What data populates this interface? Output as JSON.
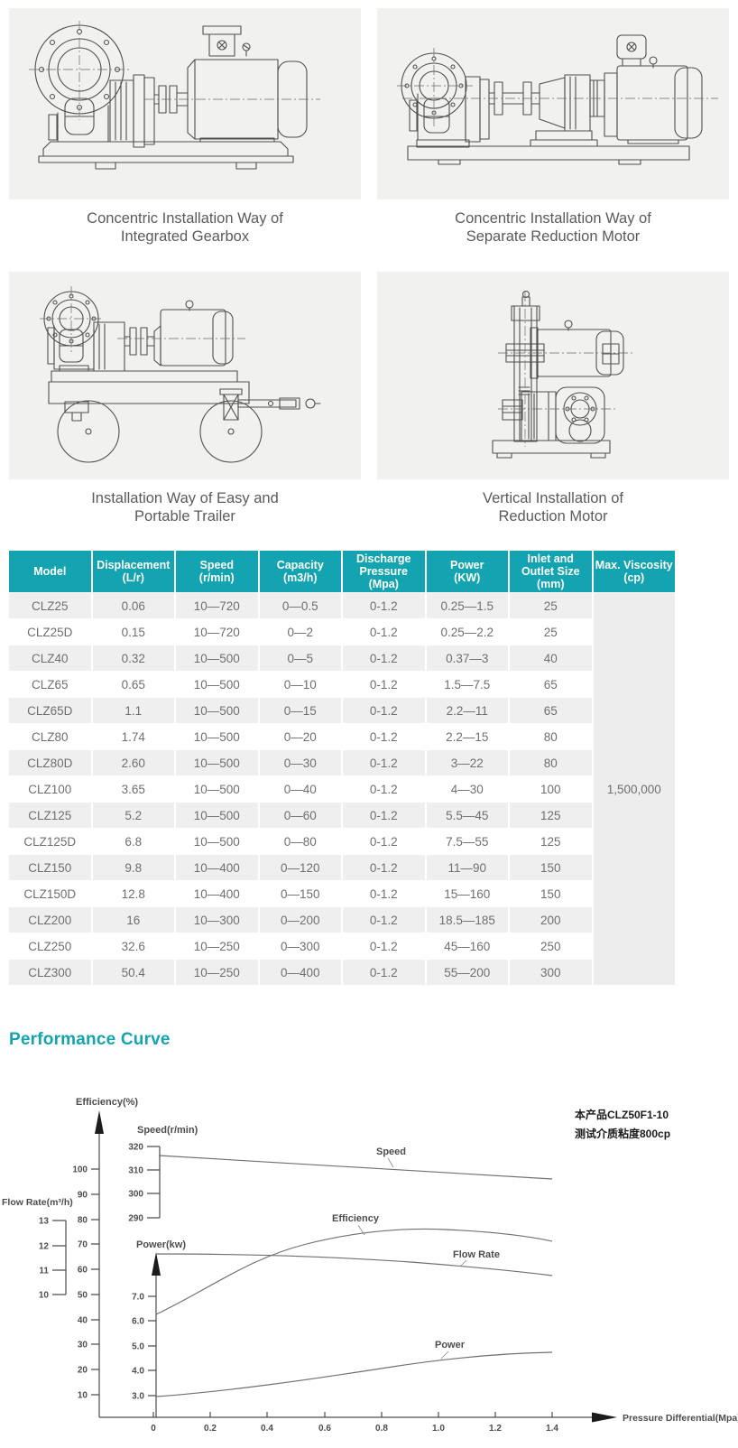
{
  "colors": {
    "accent": "#14a3b0",
    "panel_bg": "#f1f1ef",
    "row_alt": "#efefef",
    "viscosity_bg": "#ededed"
  },
  "figures": [
    {
      "caption": [
        "Concentric Installation Way of",
        "Integrated Gearbox"
      ]
    },
    {
      "caption": [
        "Concentric Installation Way of",
        "Separate Reduction Motor"
      ]
    },
    {
      "caption": [
        "Installation Way of Easy and",
        "Portable Trailer"
      ]
    },
    {
      "caption": [
        "Vertical Installation of",
        "Reduction Motor"
      ]
    }
  ],
  "table": {
    "columns": [
      {
        "lines": [
          "Model"
        ]
      },
      {
        "lines": [
          "Displacement",
          "(L/r)"
        ]
      },
      {
        "lines": [
          "Speed",
          "(r/min)"
        ]
      },
      {
        "lines": [
          "Capacity",
          "(m3/h)"
        ]
      },
      {
        "lines": [
          "Discharge",
          "Pressure",
          "(Mpa)"
        ]
      },
      {
        "lines": [
          "Power",
          "(KW)"
        ]
      },
      {
        "lines": [
          "Inlet and",
          "Outlet Size",
          "(mm)"
        ]
      },
      {
        "lines": [
          "Max. Viscosity",
          "(cp)"
        ]
      }
    ],
    "rows": [
      [
        "CLZ25",
        "0.06",
        "10—720",
        "0—0.5",
        "0-1.2",
        "0.25—1.5",
        "25"
      ],
      [
        "CLZ25D",
        "0.15",
        "10—720",
        "0—2",
        "0-1.2",
        "0.25—2.2",
        "25"
      ],
      [
        "CLZ40",
        "0.32",
        "10—500",
        "0—5",
        "0-1.2",
        "0.37—3",
        "40"
      ],
      [
        "CLZ65",
        "0.65",
        "10—500",
        "0—10",
        "0-1.2",
        "1.5—7.5",
        "65"
      ],
      [
        "CLZ65D",
        "1.1",
        "10—500",
        "0—15",
        "0-1.2",
        "2.2—11",
        "65"
      ],
      [
        "CLZ80",
        "1.74",
        "10—500",
        "0—20",
        "0-1.2",
        "2.2—15",
        "80"
      ],
      [
        "CLZ80D",
        "2.60",
        "10—500",
        "0—30",
        "0-1.2",
        "3—22",
        "80"
      ],
      [
        "CLZ100",
        "3.65",
        "10—500",
        "0—40",
        "0-1.2",
        "4—30",
        "100"
      ],
      [
        "CLZ125",
        "5.2",
        "10—500",
        "0—60",
        "0-1.2",
        "5.5—45",
        "125"
      ],
      [
        "CLZ125D",
        "6.8",
        "10—500",
        "0—80",
        "0-1.2",
        "7.5—55",
        "125"
      ],
      [
        "CLZ150",
        "9.8",
        "10—400",
        "0—120",
        "0-1.2",
        "11—90",
        "150"
      ],
      [
        "CLZ150D",
        "12.8",
        "10—400",
        "0—150",
        "0-1.2",
        "15—160",
        "150"
      ],
      [
        "CLZ200",
        "16",
        "10—300",
        "0—200",
        "0-1.2",
        "18.5—185",
        "200"
      ],
      [
        "CLZ250",
        "32.6",
        "10—250",
        "0—300",
        "0-1.2",
        "45—160",
        "250"
      ],
      [
        "CLZ300",
        "50.4",
        "10—250",
        "0—400",
        "0-1.2",
        "55—200",
        "300"
      ]
    ],
    "max_viscosity": "1,500,000"
  },
  "performance": {
    "title": "Performance Curve",
    "annotation": [
      "本产品CLZ50F1-10",
      "测试介质粘度800cp"
    ],
    "axis_labels": {
      "efficiency": "Efficiency(%)",
      "speed": "Speed(r/min)",
      "flow": "Flow Rate(m³/h)",
      "power": "Power(kw)",
      "x": "Pressure Differential(Mpa)"
    },
    "curve_labels": {
      "speed": "Speed",
      "efficiency": "Efficiency",
      "flow": "Flow Rate",
      "power": "Power"
    },
    "ticks": {
      "efficiency": [
        "100",
        "90",
        "80",
        "70",
        "60",
        "50",
        "40",
        "30",
        "20",
        "10"
      ],
      "flow": [
        "13",
        "12",
        "11",
        "10"
      ],
      "speed": [
        "320",
        "310",
        "300",
        "290"
      ],
      "power": [
        "7.0",
        "6.0",
        "5.0",
        "4.0",
        "3.0"
      ],
      "x": [
        "0",
        "0.2",
        "0.4",
        "0.6",
        "0.8",
        "1.0",
        "1.2",
        "1.4"
      ]
    }
  },
  "chart_data": {
    "type": "line",
    "title": "Performance Curve",
    "xlabel": "Pressure Differential (Mpa)",
    "x": [
      0,
      0.2,
      0.4,
      0.6,
      0.8,
      1.0,
      1.2,
      1.4
    ],
    "series": [
      {
        "name": "Speed",
        "unit": "r/min",
        "axis_range": [
          290,
          320
        ],
        "values": [
          316,
          315,
          313.5,
          312.5,
          311,
          310,
          308.5,
          307
        ]
      },
      {
        "name": "Efficiency",
        "unit": "%",
        "axis_range": [
          10,
          100
        ],
        "values": [
          42,
          54,
          63,
          69.5,
          73,
          75,
          74.5,
          71
        ]
      },
      {
        "name": "Flow Rate",
        "unit": "m3/h",
        "axis_range": [
          10,
          13
        ],
        "values": [
          11.65,
          11.6,
          11.55,
          11.45,
          11.3,
          11.15,
          10.95,
          10.75
        ]
      },
      {
        "name": "Power",
        "unit": "kw",
        "axis_range": [
          3.0,
          7.0
        ],
        "values": [
          3.0,
          3.2,
          3.45,
          3.7,
          4.0,
          4.3,
          4.55,
          4.7
        ]
      }
    ],
    "annotation": "本产品CLZ50F1-10 测试介质粘度800cp",
    "grid": false,
    "legend_position": "inline-labels"
  }
}
